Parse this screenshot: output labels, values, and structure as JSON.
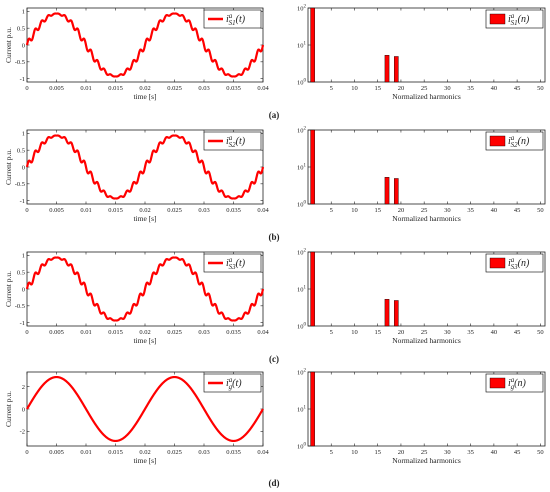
{
  "colors": {
    "series": "#ff0000",
    "axis": "#222222",
    "legend_border": "#000000"
  },
  "chart_data": [
    {
      "panel": "(a)",
      "side": "time",
      "type": "line",
      "ylabel": "Current p.u.",
      "xlabel": "time [s]",
      "legend_label": "i_{S1}^{a}(t)",
      "legend_label_display": "iaS1(t)",
      "xlim": [
        0,
        0.04
      ],
      "ylim": [
        -1.1,
        1.1
      ],
      "x_ticks": [
        "0",
        "0.005",
        "0.01",
        "0.015",
        "0.02",
        "0.025",
        "0.03",
        "0.035",
        "0.04"
      ],
      "y_ticks": [
        "1",
        "0.5",
        "0",
        "-0.5",
        "-1"
      ],
      "grid": false,
      "legend_position": "top-right",
      "signal": {
        "fundamental_hz": 50,
        "amplitude": 0.93,
        "harmonics": [
          {
            "order": 17,
            "amplitude": 0.05
          },
          {
            "order": 19,
            "amplitude": 0.045
          }
        ]
      }
    },
    {
      "panel": "(a)",
      "side": "spectrum",
      "type": "bar",
      "xlabel": "Normalized harmonics",
      "legend_label": "i_{S1}^{a}(n)",
      "legend_label_display": "iaS1(n)",
      "xlim": [
        0,
        51
      ],
      "ylim": [
        1,
        100
      ],
      "yscale": "log",
      "x_ticks": [
        "5",
        "10",
        "15",
        "20",
        "25",
        "30",
        "35",
        "40",
        "45",
        "50"
      ],
      "y_ticks": [
        "10^2",
        "10^1",
        "10^0"
      ],
      "grid": false,
      "legend_position": "top-right",
      "bars": [
        {
          "n": 1,
          "value": 100
        },
        {
          "n": 17,
          "value": 5.3
        },
        {
          "n": 19,
          "value": 4.9
        }
      ]
    },
    {
      "panel": "(b)",
      "side": "time",
      "type": "line",
      "ylabel": "Current p.u.",
      "xlabel": "time [s]",
      "legend_label": "i_{S2}^{a}(t)",
      "legend_label_display": "iaS2(t)",
      "xlim": [
        0,
        0.04
      ],
      "ylim": [
        -1.1,
        1.1
      ],
      "x_ticks": [
        "0",
        "0.005",
        "0.01",
        "0.015",
        "0.02",
        "0.025",
        "0.03",
        "0.035",
        "0.04"
      ],
      "y_ticks": [
        "1",
        "0.5",
        "0",
        "-0.5",
        "-1"
      ],
      "grid": false,
      "legend_position": "top-right",
      "signal": {
        "fundamental_hz": 50,
        "amplitude": 0.93,
        "harmonics": [
          {
            "order": 17,
            "amplitude": 0.05
          },
          {
            "order": 19,
            "amplitude": 0.045
          }
        ]
      }
    },
    {
      "panel": "(b)",
      "side": "spectrum",
      "type": "bar",
      "xlabel": "Normalized harmonics",
      "legend_label": "i_{S2}^{a}(n)",
      "legend_label_display": "iaS2(n)",
      "xlim": [
        0,
        51
      ],
      "ylim": [
        1,
        100
      ],
      "yscale": "log",
      "x_ticks": [
        "5",
        "10",
        "15",
        "20",
        "25",
        "30",
        "35",
        "40",
        "45",
        "50"
      ],
      "y_ticks": [
        "10^2",
        "10^1",
        "10^0"
      ],
      "grid": false,
      "legend_position": "top-right",
      "bars": [
        {
          "n": 1,
          "value": 100
        },
        {
          "n": 17,
          "value": 5.3
        },
        {
          "n": 19,
          "value": 4.9
        }
      ]
    },
    {
      "panel": "(c)",
      "side": "time",
      "type": "line",
      "ylabel": "Current p.u.",
      "xlabel": "time [s]",
      "legend_label": "i_{S3}^{a}(t)",
      "legend_label_display": "iaS3(t)",
      "xlim": [
        0,
        0.04
      ],
      "ylim": [
        -1.1,
        1.1
      ],
      "x_ticks": [
        "0",
        "0.005",
        "0.01",
        "0.015",
        "0.02",
        "0.025",
        "0.03",
        "0.035",
        "0.04"
      ],
      "y_ticks": [
        "1",
        "0.5",
        "0",
        "-0.5",
        "-1"
      ],
      "grid": false,
      "legend_position": "top-right",
      "signal": {
        "fundamental_hz": 50,
        "amplitude": 0.93,
        "harmonics": [
          {
            "order": 17,
            "amplitude": 0.05
          },
          {
            "order": 19,
            "amplitude": 0.045
          }
        ]
      }
    },
    {
      "panel": "(c)",
      "side": "spectrum",
      "type": "bar",
      "xlabel": "Normalized harmonics",
      "legend_label": "i_{S3}^{a}(n)",
      "legend_label_display": "iaS3(n)",
      "xlim": [
        0,
        51
      ],
      "ylim": [
        1,
        100
      ],
      "yscale": "log",
      "x_ticks": [
        "5",
        "10",
        "15",
        "20",
        "25",
        "30",
        "35",
        "40",
        "45",
        "50"
      ],
      "y_ticks": [
        "10^2",
        "10^1",
        "10^0"
      ],
      "grid": false,
      "legend_position": "top-right",
      "bars": [
        {
          "n": 1,
          "value": 100
        },
        {
          "n": 17,
          "value": 5.3
        },
        {
          "n": 19,
          "value": 4.9
        }
      ]
    },
    {
      "panel": "(d)",
      "side": "time",
      "type": "line",
      "ylabel": "Current p.u.",
      "xlabel": "time [s]",
      "legend_label": "i_{g}^{a}(t)",
      "legend_label_display": "iag(t)",
      "xlim": [
        0,
        0.04
      ],
      "ylim": [
        -3.3,
        3.3
      ],
      "x_ticks": [
        "0",
        "0.005",
        "0.01",
        "0.015",
        "0.02",
        "0.025",
        "0.03",
        "0.035",
        "0.04"
      ],
      "y_ticks": [
        "2",
        "0",
        "-2"
      ],
      "grid": false,
      "legend_position": "top-right",
      "signal": {
        "fundamental_hz": 50,
        "amplitude": 2.85,
        "harmonics": []
      }
    },
    {
      "panel": "(d)",
      "side": "spectrum",
      "type": "bar",
      "xlabel": "Normalized harmonics",
      "legend_label": "i_{g}^{a}(n)",
      "legend_label_display": "iag(n)",
      "xlim": [
        0,
        51
      ],
      "ylim": [
        1,
        100
      ],
      "yscale": "log",
      "x_ticks": [
        "5",
        "10",
        "15",
        "20",
        "25",
        "30",
        "35",
        "40",
        "45",
        "50"
      ],
      "y_ticks": [
        "10^2",
        "10^1",
        "10^0"
      ],
      "grid": false,
      "legend_position": "top-right",
      "bars": [
        {
          "n": 1,
          "value": 100
        }
      ]
    }
  ],
  "captions": [
    "(a)",
    "(b)",
    "(c)",
    "(d)"
  ]
}
